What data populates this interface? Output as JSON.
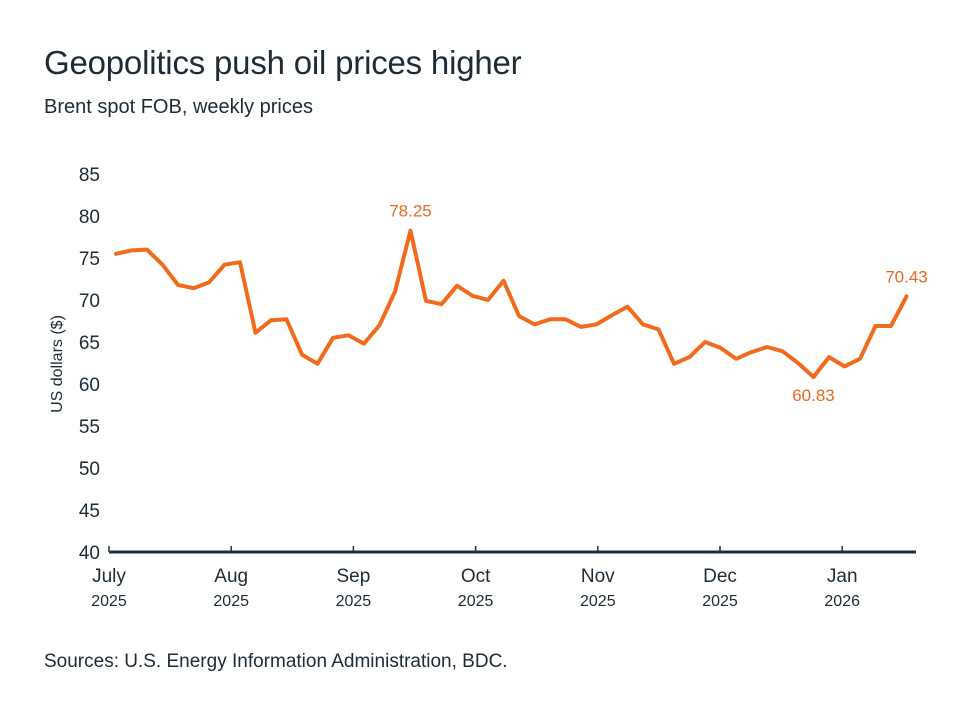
{
  "header": {
    "title": "Geopolitics push oil prices higher",
    "subtitle": "Brent spot FOB, weekly prices"
  },
  "footer": {
    "source": "Sources: U.S. Energy Information Administration, BDC."
  },
  "colors": {
    "line": "#f26b1d",
    "annotation": "#e8691f",
    "axis": "#1e3040",
    "text": "#1c2b36"
  },
  "chart_data": {
    "type": "line",
    "title": "Geopolitics push oil prices higher",
    "subtitle": "Brent spot FOB, weekly prices",
    "xlabel": "",
    "ylabel": "US dollars ($)",
    "ylim": [
      40,
      85
    ],
    "yticks": [
      40,
      45,
      50,
      55,
      60,
      65,
      70,
      75,
      80,
      85
    ],
    "grid": false,
    "legend": "none",
    "xticks": [
      {
        "month": "July",
        "year": "2025"
      },
      {
        "month": "Aug",
        "year": "2025"
      },
      {
        "month": "Sep",
        "year": "2025"
      },
      {
        "month": "Oct",
        "year": "2025"
      },
      {
        "month": "Nov",
        "year": "2025"
      },
      {
        "month": "Dec",
        "year": "2025"
      },
      {
        "month": "Jan",
        "year": "2026"
      }
    ],
    "x_unit": "weeks since start of July 2025",
    "series": [
      {
        "name": "Brent spot FOB",
        "values": [
          75.5,
          75.9,
          76.0,
          74.2,
          71.8,
          71.4,
          72.1,
          74.2,
          74.5,
          66.1,
          67.6,
          67.7,
          63.5,
          62.4,
          65.5,
          65.8,
          64.8,
          67.0,
          71.0,
          78.25,
          69.9,
          69.5,
          71.7,
          70.5,
          70.0,
          72.3,
          68.1,
          67.1,
          67.7,
          67.7,
          66.8,
          67.1,
          68.2,
          69.2,
          67.1,
          66.5,
          62.4,
          63.2,
          65.0,
          64.3,
          63.0,
          63.8,
          64.4,
          63.9,
          62.5,
          60.83,
          63.2,
          62.1,
          63.0,
          66.9,
          66.9,
          70.43
        ]
      }
    ],
    "annotations": [
      {
        "label": "78.25",
        "index": 19,
        "position": "above"
      },
      {
        "label": "60.83",
        "index": 45,
        "position": "below"
      },
      {
        "label": "70.43",
        "index": 51,
        "position": "above"
      }
    ]
  }
}
